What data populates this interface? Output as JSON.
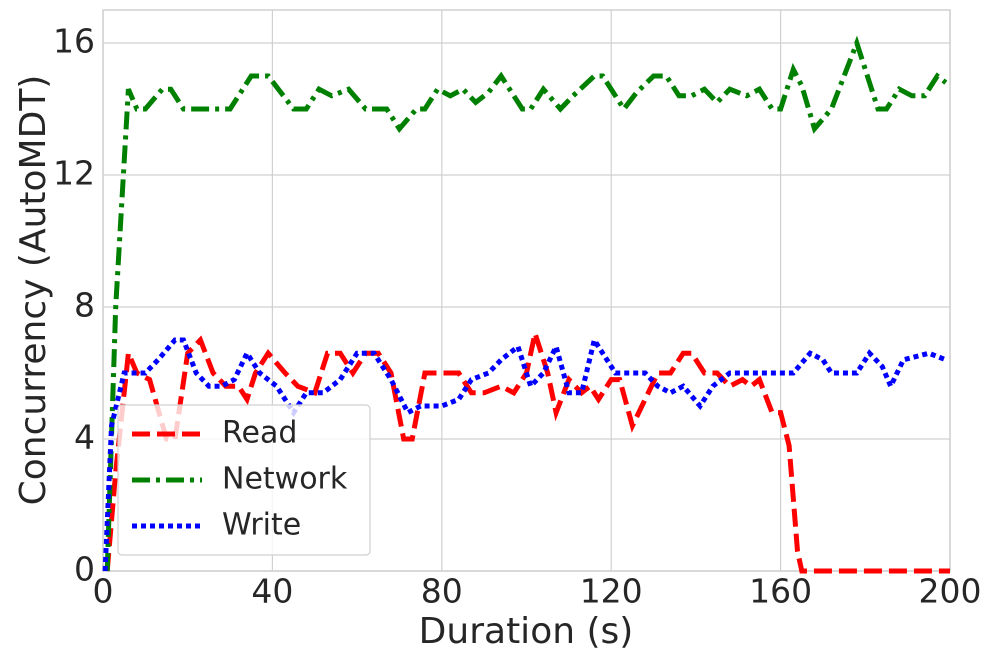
{
  "chart_data": {
    "type": "line",
    "xlabel": "Duration (s)",
    "ylabel": "Concurrency (AutoMDT)",
    "xlim": [
      0,
      200
    ],
    "xticks": [
      0,
      40,
      80,
      120,
      160,
      200
    ],
    "ylim": [
      0,
      17
    ],
    "yticks": [
      0,
      4,
      8,
      12,
      16
    ],
    "grid": true,
    "legend": "lower left",
    "series": [
      {
        "name": "Read",
        "color": "#ff0000",
        "linestyle": "dashed",
        "x": [
          1,
          3,
          6,
          8,
          11,
          15,
          17,
          20,
          23,
          26,
          29,
          32,
          34,
          36,
          39,
          43,
          46,
          50,
          53,
          56,
          59,
          62,
          65,
          68,
          71,
          73,
          76,
          80,
          84,
          87,
          90,
          94,
          97,
          100,
          102,
          105,
          107,
          110,
          113,
          115,
          117,
          120,
          122,
          125,
          128,
          131,
          134,
          137,
          139,
          142,
          145,
          148,
          151,
          153,
          155,
          158,
          160,
          162,
          164,
          165,
          200
        ],
        "values": [
          0,
          3,
          6.6,
          6,
          5.8,
          4,
          4,
          6.6,
          7,
          6,
          5.6,
          5.6,
          5.2,
          6,
          6.6,
          6,
          5.6,
          5.4,
          6.6,
          6.6,
          6,
          6.6,
          6.6,
          6,
          4,
          4,
          6,
          6,
          6,
          5.4,
          5.4,
          5.6,
          5.4,
          6,
          7.2,
          6,
          4.8,
          5.8,
          5.4,
          5.6,
          5.2,
          5.8,
          5.8,
          4.4,
          5.2,
          6,
          6,
          6.6,
          6.6,
          6,
          6,
          5.6,
          5.8,
          5.6,
          5.8,
          4.8,
          4.8,
          3.8,
          0.6,
          0,
          0
        ]
      },
      {
        "name": "Network",
        "color": "#008000",
        "linestyle": "dashdot",
        "x": [
          1,
          3,
          6,
          8,
          10,
          14,
          16,
          19,
          22,
          30,
          35,
          39,
          42,
          45,
          48,
          51,
          54,
          58,
          62,
          67,
          70,
          74,
          76,
          79,
          82,
          85,
          88,
          91,
          94,
          96,
          99,
          101,
          104,
          108,
          111,
          116,
          118,
          123,
          126,
          130,
          133,
          136,
          139,
          142,
          145,
          148,
          152,
          155,
          158,
          160,
          163,
          165,
          168,
          172,
          175,
          178,
          181,
          183,
          185,
          188,
          191,
          194,
          197,
          199
        ],
        "values": [
          0,
          8,
          14.6,
          14,
          14,
          14.6,
          14.6,
          14,
          14,
          14,
          15,
          15,
          14.5,
          14,
          14,
          14.6,
          14.4,
          14.6,
          14,
          14,
          13.4,
          14,
          14,
          14.6,
          14.4,
          14.6,
          14.2,
          14.5,
          15,
          14.6,
          14,
          14,
          14.6,
          14,
          14.4,
          15,
          15,
          14,
          14.5,
          15,
          15,
          14.4,
          14.4,
          14.6,
          14.2,
          14.6,
          14.4,
          14.6,
          14,
          14,
          15.2,
          14.7,
          13.4,
          14,
          15,
          16,
          14.8,
          14,
          14,
          14.6,
          14.4,
          14.4,
          15,
          14.8
        ]
      },
      {
        "name": "Write",
        "color": "#0000ff",
        "linestyle": "dotted",
        "x": [
          0.5,
          2,
          5,
          10,
          13,
          17,
          19,
          22,
          25,
          28,
          31,
          34,
          37,
          41,
          45,
          48,
          52,
          56,
          60,
          64,
          68,
          72,
          75,
          80,
          84,
          87,
          91,
          94,
          98,
          101,
          104,
          107,
          110,
          113,
          116,
          118,
          121,
          128,
          131,
          134,
          137,
          141,
          144,
          148,
          152,
          158,
          163,
          167,
          170,
          172,
          178,
          181,
          184,
          186,
          189,
          195,
          199
        ],
        "values": [
          0,
          4.4,
          6,
          6,
          6.4,
          7,
          7,
          6,
          5.6,
          5.6,
          5.8,
          6.6,
          6,
          5.6,
          4.8,
          5.4,
          5.4,
          5.8,
          6.6,
          6.6,
          5.8,
          4.8,
          5,
          5,
          5.2,
          5.8,
          6,
          6.4,
          6.8,
          5.6,
          6,
          6.8,
          5.4,
          5.4,
          7,
          6.6,
          6,
          6,
          5.6,
          5.4,
          5.6,
          5,
          5.6,
          6,
          6,
          6,
          6,
          6.6,
          6.4,
          6,
          6,
          6.6,
          6.2,
          5.6,
          6.4,
          6.6,
          6.4
        ]
      }
    ]
  }
}
